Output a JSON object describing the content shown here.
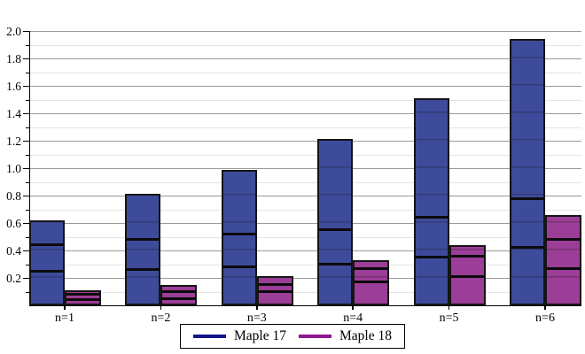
{
  "chart_data": {
    "type": "bar",
    "variant": "grouped-stacked",
    "title": "",
    "xlabel": "",
    "ylabel": "",
    "categories": [
      "n=1",
      "n=2",
      "n=3",
      "n=4",
      "n=5",
      "n=6"
    ],
    "series": [
      {
        "name": "Maple 17",
        "bar_color": "#3E4B9B",
        "legend_color": "#14148C",
        "cumulative_stacks": [
          [
            0.25,
            0.44,
            0.62
          ],
          [
            0.26,
            0.48,
            0.81
          ],
          [
            0.28,
            0.52,
            0.99
          ],
          [
            0.3,
            0.55,
            1.21
          ],
          [
            0.35,
            0.64,
            1.51
          ],
          [
            0.42,
            0.78,
            1.94
          ]
        ]
      },
      {
        "name": "Maple 18",
        "bar_color": "#9C3D97",
        "legend_color": "#8E188E",
        "cumulative_stacks": [
          [
            0.04,
            0.08,
            0.11
          ],
          [
            0.05,
            0.1,
            0.15
          ],
          [
            0.1,
            0.15,
            0.21
          ],
          [
            0.17,
            0.27,
            0.33
          ],
          [
            0.21,
            0.36,
            0.44
          ],
          [
            0.27,
            0.48,
            0.66
          ]
        ]
      }
    ],
    "ylim": [
      0,
      2.0
    ],
    "y_major_step": 0.2,
    "y_minor_step": 0.1,
    "y_tick_labels": [
      "2.0",
      "1.8",
      "1.6",
      "1.4",
      "1.2",
      "1.0",
      "0.8",
      "0.6",
      "0.4",
      "0.2"
    ],
    "grid": {
      "major_color": "#9b9b9b",
      "minor_color": "#e4e4e4",
      "axis_color": "#000000"
    },
    "legend": {
      "position": "bottom",
      "items": [
        "Maple 17",
        "Maple 18"
      ]
    }
  }
}
